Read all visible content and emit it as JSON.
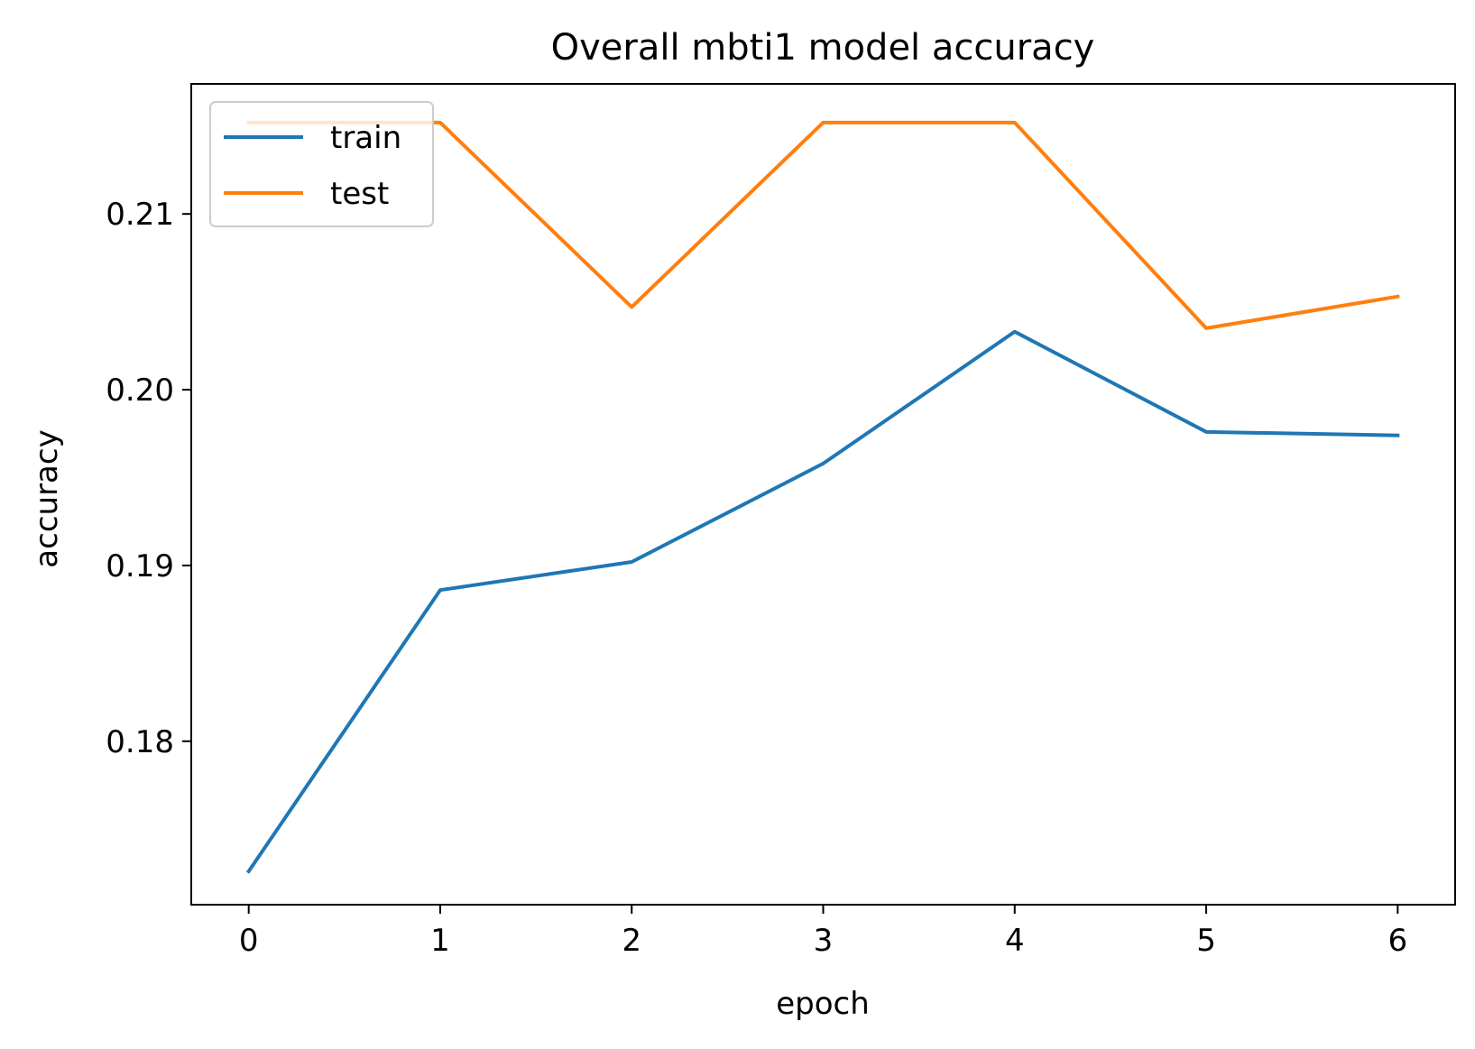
{
  "chart_data": {
    "type": "line",
    "title": "Overall mbti1 model accuracy",
    "xlabel": "epoch",
    "ylabel": "accuracy",
    "x": [
      0,
      1,
      2,
      3,
      4,
      5,
      6
    ],
    "xticks": [
      0,
      1,
      2,
      3,
      4,
      5,
      6
    ],
    "xtick_labels": [
      "0",
      "1",
      "2",
      "3",
      "4",
      "5",
      "6"
    ],
    "yticks": [
      0.18,
      0.19,
      0.2,
      0.21
    ],
    "ytick_labels": [
      "0.18",
      "0.19",
      "0.20",
      "0.21"
    ],
    "xlim": [
      -0.3,
      6.3
    ],
    "ylim": [
      0.1707,
      0.2174
    ],
    "grid": false,
    "legend_position": "upper left",
    "series": [
      {
        "name": "train",
        "color": "#1f77b4",
        "values": [
          0.1726,
          0.1886,
          0.1902,
          0.1958,
          0.2033,
          0.1976,
          0.1974
        ]
      },
      {
        "name": "test",
        "color": "#ff7f0e",
        "values": [
          0.2152,
          0.2152,
          0.2047,
          0.2152,
          0.2152,
          0.2035,
          0.2053
        ]
      }
    ]
  }
}
